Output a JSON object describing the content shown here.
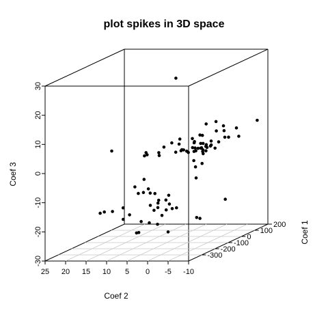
{
  "chart_data": {
    "type": "scatter",
    "title": "plot spikes in 3D space",
    "xlabel": "Coef 2",
    "ylabel": "Coef 1",
    "zlabel": "Coef 3",
    "x_ticks": [
      "25",
      "20",
      "15",
      "10",
      "5",
      "0",
      "-5",
      "-10"
    ],
    "y_ticks": [
      "-300",
      "-200",
      "-100",
      "0",
      "100",
      "200"
    ],
    "z_ticks": [
      "-30",
      "-20",
      "-10",
      "0",
      "10",
      "20",
      "30"
    ],
    "grid": "floor",
    "point_color": "#000000",
    "points": [
      [
        2.9,
        -96,
        26.3
      ],
      [
        -3.1,
        -53,
        9.7
      ],
      [
        -4.4,
        -19,
        9.8
      ],
      [
        -8.0,
        -74,
        9.5
      ],
      [
        -11.8,
        -94,
        9.2
      ],
      [
        -4.8,
        -153,
        8.0
      ],
      [
        -9.6,
        -119,
        8.8
      ],
      [
        -7.1,
        -100,
        8.3
      ],
      [
        -12.1,
        54,
        8.7
      ],
      [
        0.0,
        -156,
        6.7
      ],
      [
        -3.9,
        -106,
        6.9
      ],
      [
        -10.0,
        -126,
        6.7
      ],
      [
        -10.6,
        -116,
        6.5
      ],
      [
        1.0,
        -186,
        6.0
      ],
      [
        -2.5,
        -139,
        6.5
      ],
      [
        -8.7,
        -189,
        6.7
      ],
      [
        -7.4,
        -148,
        4.5
      ],
      [
        -11.7,
        -73,
        5.9
      ],
      [
        -3.2,
        -147,
        5.2
      ],
      [
        -2.0,
        -107,
        4.8
      ],
      [
        -5.3,
        -120,
        4.0
      ],
      [
        -1.6,
        -177,
        3.4
      ],
      [
        -6.1,
        -171,
        3.3
      ],
      [
        2.4,
        -202,
        4.9
      ],
      [
        -0.2,
        -168,
        5.2
      ],
      [
        -2.4,
        -215,
        4.3
      ],
      [
        -7.6,
        -98,
        4.5
      ],
      [
        -5.6,
        -133,
        3.7
      ],
      [
        -6.6,
        -155,
        3.8
      ],
      [
        -4.6,
        -161,
        3.6
      ],
      [
        -1.7,
        -200,
        3.6
      ],
      [
        -3.0,
        -153,
        3.7
      ],
      [
        -3.9,
        -119,
        4.4
      ],
      [
        -4.6,
        -123,
        4.5
      ],
      [
        -7.5,
        -191,
        3.4
      ],
      [
        -4.7,
        -138,
        3.3
      ],
      [
        -4.3,
        -182,
        3.0
      ],
      [
        -5.0,
        -153,
        3.5
      ],
      [
        -6.4,
        -123,
        3.6
      ],
      [
        -3.3,
        -194,
        2.9
      ],
      [
        4.1,
        -188,
        2.7
      ],
      [
        -0.1,
        -190,
        2.9
      ],
      [
        -2.3,
        -112,
        2.7
      ],
      [
        6.9,
        -198,
        2.9
      ],
      [
        -7.4,
        -119,
        2.8
      ],
      [
        -3.8,
        -153,
        2.6
      ],
      [
        -6.5,
        -181,
        2.2
      ],
      [
        3.7,
        -197,
        1.9
      ],
      [
        7.3,
        -197,
        1.8
      ],
      [
        -4.5,
        -123,
        1.7
      ],
      [
        6.6,
        -199,
        2.2
      ],
      [
        -1.6,
        -154,
        2.5
      ],
      [
        -6.9,
        -202,
        -0.7
      ],
      [
        -3.4,
        -156,
        -0.7
      ],
      [
        -4.2,
        -168,
        -2.6
      ],
      [
        -3.9,
        -154,
        -6.7
      ],
      [
        6.7,
        -219,
        -5.8
      ],
      [
        14.9,
        -209,
        3.7
      ],
      [
        -9.8,
        -116,
        -14.8
      ],
      [
        9.7,
        -195,
        -8.9
      ],
      [
        6.3,
        -199,
        -9.5
      ],
      [
        8.2,
        -177,
        -11.2
      ],
      [
        9.1,
        -188,
        -11.3
      ],
      [
        6.1,
        -191,
        -11.1
      ],
      [
        5.5,
        -174,
        -11.6
      ],
      [
        4.1,
        -189,
        -13.6
      ],
      [
        2.1,
        -175,
        -12.2
      ],
      [
        2.3,
        -190,
        -13.5
      ],
      [
        4.3,
        -188,
        -14.6
      ],
      [
        5.9,
        -196,
        -15.2
      ],
      [
        4.1,
        -195,
        -16.0
      ],
      [
        5.3,
        -187,
        -17.1
      ],
      [
        2.4,
        -185,
        -17.0
      ],
      [
        2.1,
        -170,
        -15.3
      ],
      [
        1.0,
        -183,
        -16.6
      ],
      [
        0.2,
        -175,
        -16.5
      ],
      [
        12.9,
        -185,
        -16.3
      ],
      [
        11.2,
        -189,
        -18.6
      ],
      [
        17.0,
        -200,
        -17.4
      ],
      [
        12.2,
        -206,
        -19.8
      ],
      [
        14.5,
        -216,
        -16.9
      ],
      [
        17.2,
        -225,
        -17.3
      ],
      [
        8.2,
        -194,
        -20.8
      ],
      [
        4.2,
        -161,
        -19.4
      ],
      [
        6.0,
        -201,
        -21.1
      ],
      [
        4.6,
        -182,
        -22.0
      ],
      [
        -4.3,
        -162,
        -20.1
      ],
      [
        -5.1,
        -162,
        -20.4
      ],
      [
        8.2,
        -212,
        -24.2
      ],
      [
        8.7,
        -214,
        -24.3
      ],
      [
        1.7,
        -192,
        -24.4
      ]
    ]
  }
}
